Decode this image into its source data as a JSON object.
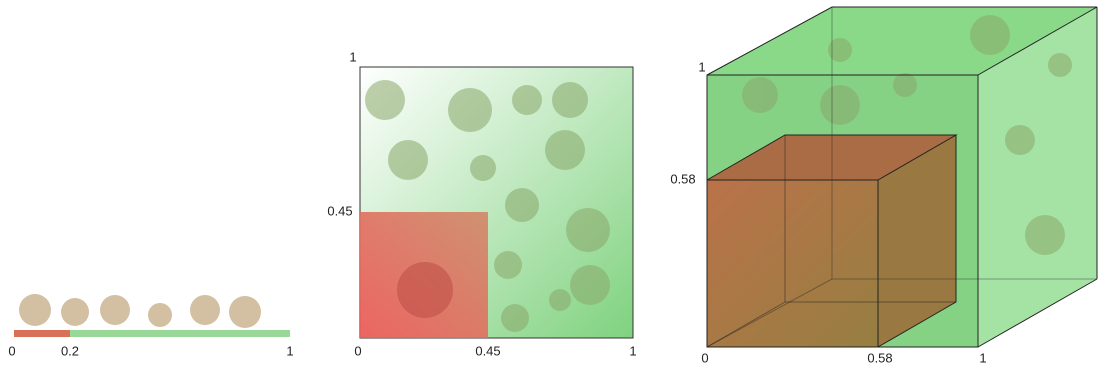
{
  "line": {
    "labels": [
      "0",
      "0.2",
      "1"
    ]
  },
  "square": {
    "labels": [
      "1",
      "0.45",
      "0",
      "0.45",
      "1"
    ]
  },
  "cube": {
    "labels": [
      "1",
      "0.58",
      "0",
      "0.58",
      "1"
    ]
  }
}
